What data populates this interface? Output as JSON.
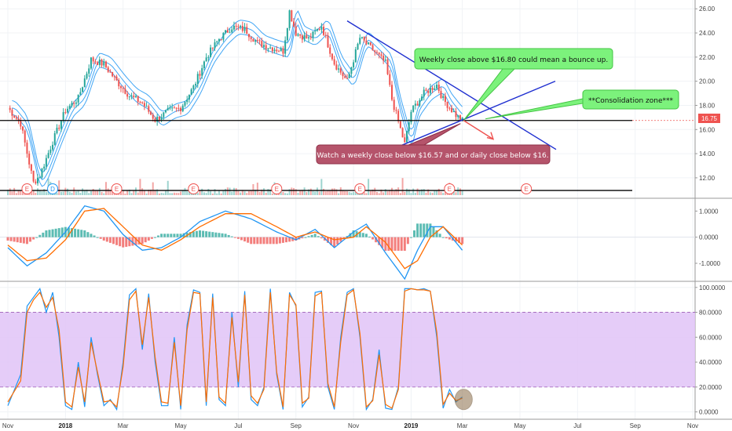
{
  "chart_data": [
    {
      "type": "candlestick",
      "title": "",
      "price_axis": {
        "ticks": [
          "26.00",
          "24.00",
          "22.00",
          "20.00",
          "18.00",
          "16.00",
          "14.00",
          "12.00"
        ],
        "ylim": [
          10.5,
          26.6
        ],
        "last_price": "16.75"
      },
      "x_axis": {
        "ticks": [
          {
            "label": "Nov",
            "week": 0,
            "bold": false
          },
          {
            "label": "2018",
            "week": 9,
            "bold": true
          },
          {
            "label": "Mar",
            "week": 18,
            "bold": false
          },
          {
            "label": "May",
            "week": 27,
            "bold": false
          },
          {
            "label": "Jul",
            "week": 36,
            "bold": false
          },
          {
            "label": "Sep",
            "week": 45,
            "bold": false
          },
          {
            "label": "Nov",
            "week": 54,
            "bold": false
          },
          {
            "label": "2019",
            "week": 63,
            "bold": true
          },
          {
            "label": "Mar",
            "week": 71,
            "bold": false
          },
          {
            "label": "May",
            "week": 80,
            "bold": false
          },
          {
            "label": "Jul",
            "week": 89,
            "bold": false
          },
          {
            "label": "Sep",
            "week": 98,
            "bold": false
          },
          {
            "label": "Nov",
            "week": 107,
            "bold": false
          }
        ]
      },
      "price_path": [
        [
          0,
          17.8
        ],
        [
          2,
          16.5
        ],
        [
          4,
          11.6
        ],
        [
          5,
          12.2
        ],
        [
          7,
          15.0
        ],
        [
          9,
          17.6
        ],
        [
          11,
          18.6
        ],
        [
          13,
          21.8
        ],
        [
          15,
          21.4
        ],
        [
          17,
          20.0
        ],
        [
          19,
          18.8
        ],
        [
          21,
          18.2
        ],
        [
          23,
          16.8
        ],
        [
          25,
          17.5
        ],
        [
          27,
          17.8
        ],
        [
          29,
          19.5
        ],
        [
          31,
          22.0
        ],
        [
          33,
          23.5
        ],
        [
          35,
          24.5
        ],
        [
          37,
          24.3
        ],
        [
          39,
          23.2
        ],
        [
          41,
          22.8
        ],
        [
          43,
          22.5
        ],
        [
          44,
          25.8
        ],
        [
          45,
          24.0
        ],
        [
          47,
          23.5
        ],
        [
          49,
          24.6
        ],
        [
          51,
          21.5
        ],
        [
          53,
          20.0
        ],
        [
          55,
          23.6
        ],
        [
          57,
          22.6
        ],
        [
          59,
          21.5
        ],
        [
          60,
          18.5
        ],
        [
          62,
          14.8
        ],
        [
          63,
          17.5
        ],
        [
          65,
          19.0
        ],
        [
          67,
          19.7
        ],
        [
          68,
          18.5
        ],
        [
          70,
          17.2
        ],
        [
          71,
          16.75
        ]
      ],
      "horizontal_lines": [
        {
          "name": "support",
          "price": 16.75,
          "color": "#000000"
        },
        {
          "name": "volume-base",
          "price": 10.95,
          "color": "#000000"
        }
      ],
      "earnings_markers": [
        {
          "week": 3,
          "label": "E"
        },
        {
          "week": 7,
          "label": "D"
        },
        {
          "week": 17,
          "label": "E"
        },
        {
          "week": 29,
          "label": "E"
        },
        {
          "week": 42,
          "label": "E"
        },
        {
          "week": 55,
          "label": "E"
        },
        {
          "week": 69,
          "label": "E"
        },
        {
          "week": 81,
          "label": "E"
        }
      ],
      "annotations": [
        {
          "text": "Weekly close above $16.80 could mean a bounce up.",
          "kind": "bullish"
        },
        {
          "text": "**Consolidation zone***",
          "kind": "bullish"
        },
        {
          "text": "Watch a weekly close below $16.57 and or daily close below $16.",
          "kind": "bearish"
        }
      ],
      "colors": {
        "up": "#26a69a",
        "down": "#ef5350",
        "bands": "#2196f3",
        "trendline": "#1f2fd0",
        "bullish_note": "#7cf27c",
        "bearish_note": "#b5546b"
      }
    },
    {
      "type": "macd",
      "ticks": [
        "1.0000",
        "0.0000",
        "-1.0000"
      ],
      "ylim": [
        -1.6,
        1.4
      ],
      "macd_path": [
        [
          0,
          -0.4
        ],
        [
          3,
          -1.1
        ],
        [
          6,
          -0.6
        ],
        [
          9,
          0.2
        ],
        [
          12,
          1.2
        ],
        [
          15,
          1.0
        ],
        [
          18,
          0.1
        ],
        [
          21,
          -0.5
        ],
        [
          24,
          -0.4
        ],
        [
          27,
          0.0
        ],
        [
          30,
          0.6
        ],
        [
          34,
          1.0
        ],
        [
          38,
          0.7
        ],
        [
          42,
          0.2
        ],
        [
          45,
          -0.1
        ],
        [
          48,
          0.3
        ],
        [
          51,
          -0.4
        ],
        [
          54,
          0.2
        ],
        [
          56,
          0.5
        ],
        [
          59,
          -0.6
        ],
        [
          62,
          -1.6
        ],
        [
          64,
          -0.5
        ],
        [
          66,
          0.4
        ],
        [
          68,
          0.4
        ],
        [
          71,
          -0.5
        ]
      ],
      "signal_path": [
        [
          0,
          -0.3
        ],
        [
          3,
          -0.9
        ],
        [
          6,
          -0.8
        ],
        [
          9,
          -0.1
        ],
        [
          12,
          1.0
        ],
        [
          15,
          1.1
        ],
        [
          18,
          0.4
        ],
        [
          21,
          -0.3
        ],
        [
          24,
          -0.5
        ],
        [
          27,
          -0.1
        ],
        [
          30,
          0.4
        ],
        [
          34,
          0.9
        ],
        [
          38,
          0.9
        ],
        [
          42,
          0.4
        ],
        [
          45,
          0.0
        ],
        [
          48,
          0.2
        ],
        [
          51,
          -0.1
        ],
        [
          54,
          0.0
        ],
        [
          56,
          0.4
        ],
        [
          59,
          -0.2
        ],
        [
          62,
          -1.2
        ],
        [
          64,
          -0.9
        ],
        [
          66,
          0.0
        ],
        [
          68,
          0.4
        ],
        [
          71,
          -0.3
        ]
      ],
      "colors": {
        "macd": "#2196f3",
        "signal": "#ff6d00",
        "hist_up": "#26a69a",
        "hist_down": "#ef5350"
      }
    },
    {
      "type": "stochastic",
      "ticks": [
        "100.0000",
        "80.0000",
        "60.0000",
        "40.0000",
        "20.0000",
        "0.0000"
      ],
      "ylim": [
        -4,
        103
      ],
      "band": [
        20,
        80
      ],
      "k_path": [
        [
          0,
          5
        ],
        [
          2,
          30
        ],
        [
          3,
          85
        ],
        [
          4,
          92
        ],
        [
          5,
          99
        ],
        [
          6,
          80
        ],
        [
          7,
          96
        ],
        [
          8,
          60
        ],
        [
          9,
          5
        ],
        [
          10,
          2
        ],
        [
          11,
          40
        ],
        [
          12,
          4
        ],
        [
          13,
          60
        ],
        [
          14,
          30
        ],
        [
          15,
          5
        ],
        [
          16,
          10
        ],
        [
          17,
          2
        ],
        [
          18,
          40
        ],
        [
          19,
          94
        ],
        [
          20,
          99
        ],
        [
          21,
          50
        ],
        [
          22,
          95
        ],
        [
          23,
          40
        ],
        [
          24,
          5
        ],
        [
          25,
          5
        ],
        [
          26,
          60
        ],
        [
          27,
          2
        ],
        [
          28,
          70
        ],
        [
          29,
          98
        ],
        [
          30,
          96
        ],
        [
          31,
          5
        ],
        [
          32,
          95
        ],
        [
          33,
          10
        ],
        [
          34,
          5
        ],
        [
          35,
          80
        ],
        [
          36,
          20
        ],
        [
          37,
          97
        ],
        [
          38,
          10
        ],
        [
          39,
          5
        ],
        [
          40,
          20
        ],
        [
          41,
          99
        ],
        [
          42,
          30
        ],
        [
          43,
          2
        ],
        [
          44,
          96
        ],
        [
          45,
          85
        ],
        [
          46,
          4
        ],
        [
          47,
          12
        ],
        [
          48,
          96
        ],
        [
          49,
          97
        ],
        [
          50,
          20
        ],
        [
          51,
          2
        ],
        [
          52,
          60
        ],
        [
          53,
          96
        ],
        [
          54,
          99
        ],
        [
          55,
          60
        ],
        [
          56,
          2
        ],
        [
          57,
          10
        ],
        [
          58,
          50
        ],
        [
          59,
          3
        ],
        [
          60,
          2
        ],
        [
          61,
          20
        ],
        [
          62,
          99
        ],
        [
          63,
          99
        ],
        [
          64,
          98
        ],
        [
          65,
          99
        ],
        [
          66,
          97
        ],
        [
          67,
          60
        ],
        [
          68,
          3
        ],
        [
          69,
          18
        ],
        [
          70,
          8
        ],
        [
          71,
          12
        ]
      ],
      "d_path": [
        [
          0,
          8
        ],
        [
          2,
          25
        ],
        [
          3,
          80
        ],
        [
          4,
          90
        ],
        [
          5,
          96
        ],
        [
          6,
          84
        ],
        [
          7,
          92
        ],
        [
          8,
          66
        ],
        [
          9,
          8
        ],
        [
          10,
          4
        ],
        [
          11,
          36
        ],
        [
          12,
          8
        ],
        [
          13,
          56
        ],
        [
          14,
          32
        ],
        [
          15,
          8
        ],
        [
          16,
          9
        ],
        [
          17,
          4
        ],
        [
          18,
          36
        ],
        [
          19,
          90
        ],
        [
          20,
          97
        ],
        [
          21,
          54
        ],
        [
          22,
          92
        ],
        [
          23,
          44
        ],
        [
          24,
          8
        ],
        [
          25,
          7
        ],
        [
          26,
          56
        ],
        [
          27,
          5
        ],
        [
          28,
          66
        ],
        [
          29,
          96
        ],
        [
          30,
          95
        ],
        [
          31,
          8
        ],
        [
          32,
          92
        ],
        [
          33,
          12
        ],
        [
          34,
          7
        ],
        [
          35,
          76
        ],
        [
          36,
          24
        ],
        [
          37,
          94
        ],
        [
          38,
          13
        ],
        [
          39,
          7
        ],
        [
          40,
          18
        ],
        [
          41,
          96
        ],
        [
          42,
          32
        ],
        [
          43,
          4
        ],
        [
          44,
          94
        ],
        [
          45,
          86
        ],
        [
          46,
          7
        ],
        [
          47,
          11
        ],
        [
          48,
          93
        ],
        [
          49,
          96
        ],
        [
          50,
          23
        ],
        [
          51,
          4
        ],
        [
          52,
          56
        ],
        [
          53,
          94
        ],
        [
          54,
          98
        ],
        [
          55,
          63
        ],
        [
          56,
          4
        ],
        [
          57,
          9
        ],
        [
          58,
          46
        ],
        [
          59,
          6
        ],
        [
          60,
          3
        ],
        [
          61,
          18
        ],
        [
          62,
          97
        ],
        [
          63,
          99
        ],
        [
          64,
          98
        ],
        [
          65,
          98
        ],
        [
          66,
          97
        ],
        [
          67,
          64
        ],
        [
          68,
          6
        ],
        [
          69,
          15
        ],
        [
          70,
          9
        ],
        [
          71,
          11
        ]
      ],
      "colors": {
        "k": "#2196f3",
        "d": "#ff6d00",
        "band_fill": "#e1c3f7",
        "band_line": "#9b59b6"
      }
    }
  ]
}
